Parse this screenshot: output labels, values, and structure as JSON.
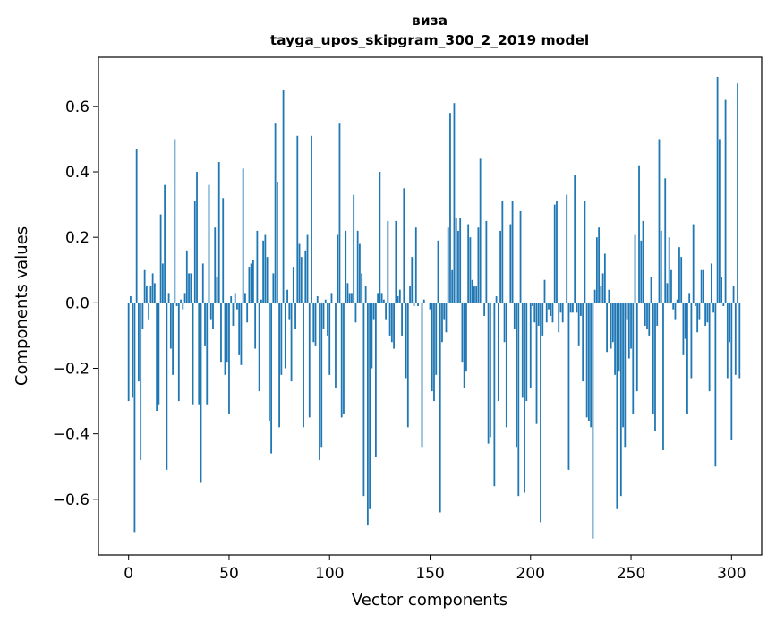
{
  "chart_data": {
    "type": "bar",
    "title": "виза",
    "subtitle": "tayga_upos_skipgram_300_2_2019 model",
    "xlabel": "Vector components",
    "ylabel": "Components values",
    "xlim": [
      -15,
      315
    ],
    "ylim": [
      -0.77,
      0.75
    ],
    "xticks": [
      0,
      50,
      100,
      150,
      200,
      250,
      300
    ],
    "yticks": [
      -0.6,
      -0.4,
      -0.2,
      0.0,
      0.2,
      0.4,
      0.6
    ],
    "xtick_labels": [
      "0",
      "50",
      "100",
      "150",
      "200",
      "250",
      "300"
    ],
    "ytick_labels": [
      "−0.6",
      "−0.4",
      "−0.2",
      "0.0",
      "0.2",
      "0.4",
      "0.6"
    ],
    "bar_color": "#1f77b4",
    "values": [
      -0.3,
      0.02,
      -0.29,
      -0.7,
      0.47,
      -0.24,
      -0.48,
      -0.08,
      0.1,
      0.05,
      -0.05,
      0.05,
      0.09,
      0.06,
      -0.33,
      -0.31,
      0.27,
      0.12,
      0.36,
      -0.51,
      0.03,
      -0.14,
      -0.22,
      0.5,
      -0.01,
      -0.3,
      0.01,
      -0.02,
      0.03,
      0.16,
      0.09,
      0.09,
      -0.31,
      0.31,
      0.4,
      -0.31,
      -0.55,
      0.12,
      -0.13,
      -0.31,
      0.36,
      -0.05,
      -0.08,
      0.23,
      0.08,
      0.43,
      -0.18,
      0.32,
      -0.22,
      -0.18,
      -0.34,
      0.02,
      -0.07,
      0.03,
      -0.02,
      -0.16,
      -0.19,
      0.41,
      0.03,
      -0.06,
      0.11,
      0.12,
      0.13,
      -0.14,
      0.22,
      -0.27,
      0.01,
      0.19,
      0.21,
      0.14,
      -0.36,
      -0.46,
      0.09,
      0.55,
      0.37,
      -0.38,
      -0.22,
      0.65,
      -0.2,
      0.04,
      -0.05,
      -0.24,
      0.11,
      -0.08,
      0.51,
      0.18,
      0.14,
      -0.38,
      0.16,
      0.21,
      -0.35,
      0.51,
      -0.12,
      -0.13,
      0.02,
      -0.48,
      -0.44,
      -0.08,
      0.01,
      -0.1,
      -0.22,
      0.03,
      0.0,
      -0.26,
      0.21,
      0.55,
      -0.35,
      -0.34,
      0.22,
      0.06,
      0.03,
      0.03,
      0.33,
      -0.06,
      0.22,
      0.18,
      0.09,
      -0.59,
      0.05,
      -0.68,
      -0.63,
      -0.2,
      -0.05,
      -0.47,
      0.03,
      0.4,
      0.03,
      0.01,
      -0.05,
      0.25,
      -0.1,
      -0.12,
      -0.14,
      0.25,
      0.02,
      0.04,
      -0.1,
      0.35,
      -0.23,
      -0.38,
      0.05,
      0.14,
      -0.01,
      0.23,
      -0.01,
      0.0,
      -0.44,
      0.01,
      0.0,
      0.0,
      -0.02,
      -0.27,
      -0.3,
      -0.22,
      0.19,
      -0.64,
      -0.12,
      -0.05,
      -0.09,
      0.23,
      0.58,
      0.1,
      0.61,
      0.26,
      0.22,
      0.26,
      -0.18,
      -0.26,
      -0.21,
      0.24,
      0.2,
      0.07,
      0.05,
      0.05,
      0.23,
      0.44,
      0.0,
      -0.04,
      0.25,
      -0.43,
      -0.41,
      0.0,
      -0.56,
      0.02,
      -0.3,
      0.22,
      0.31,
      -0.12,
      -0.38,
      0.0,
      0.24,
      0.31,
      -0.08,
      -0.44,
      -0.59,
      0.28,
      -0.29,
      -0.58,
      -0.3,
      0.0,
      -0.26,
      -0.01,
      -0.06,
      -0.37,
      -0.07,
      -0.67,
      -0.1,
      0.07,
      -0.06,
      -0.02,
      -0.04,
      -0.06,
      0.3,
      0.31,
      -0.09,
      -0.03,
      -0.06,
      0.0,
      0.33,
      -0.51,
      -0.03,
      -0.03,
      0.39,
      -0.03,
      -0.13,
      -0.04,
      -0.24,
      0.31,
      -0.35,
      -0.36,
      -0.38,
      -0.72,
      0.04,
      0.2,
      0.23,
      0.05,
      0.09,
      0.15,
      -0.15,
      0.04,
      -0.14,
      -0.12,
      -0.22,
      -0.63,
      -0.21,
      -0.59,
      -0.38,
      -0.44,
      -0.05,
      -0.17,
      -0.14,
      -0.34,
      0.21,
      -0.27,
      0.42,
      0.19,
      0.25,
      -0.07,
      -0.08,
      -0.1,
      0.08,
      -0.34,
      -0.39,
      -0.07,
      0.5,
      0.22,
      -0.45,
      0.38,
      0.06,
      0.2,
      0.1,
      -0.02,
      -0.05,
      0.01,
      0.17,
      0.14,
      -0.16,
      -0.11,
      -0.34,
      0.03,
      -0.23,
      0.24,
      -0.01,
      -0.09,
      -0.05,
      0.1,
      0.1,
      -0.07,
      -0.06,
      -0.27,
      0.12,
      -0.03,
      -0.5,
      0.69,
      0.5,
      0.08,
      -0.01,
      0.62,
      -0.23,
      -0.12,
      -0.42,
      0.05,
      -0.22,
      0.67,
      -0.23
    ]
  }
}
